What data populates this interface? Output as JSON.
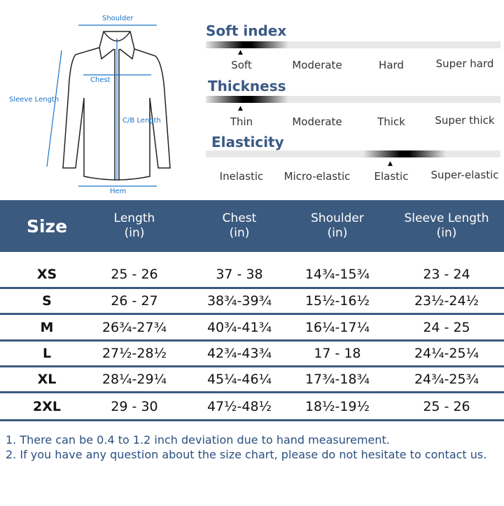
{
  "diagram": {
    "shoulder": "Shoulder",
    "chest": "Chest",
    "sleeve_length": "Sleeve Length",
    "cb_length": "C/B Length",
    "hem": "Hem"
  },
  "properties": [
    {
      "title": "Soft index",
      "options": [
        "Soft",
        "Moderate",
        "Hard",
        "Super hard"
      ],
      "selected": "Soft"
    },
    {
      "title": "Thickness",
      "options": [
        "Thin",
        "Moderate",
        "Thick",
        "Super thick"
      ],
      "selected": "Thin"
    },
    {
      "title": "Elasticity",
      "options": [
        "Inelastic",
        "Micro-elastic",
        "Elastic",
        "Super-elastic"
      ],
      "selected": "Elastic"
    }
  ],
  "table": {
    "headers": [
      {
        "l1": "Size",
        "l2": ""
      },
      {
        "l1": "Length",
        "l2": "(in)"
      },
      {
        "l1": "Chest",
        "l2": "(in)"
      },
      {
        "l1": "Shoulder",
        "l2": "(in)"
      },
      {
        "l1": "Sleeve Length",
        "l2": "(in)"
      }
    ],
    "rows": [
      [
        "XS",
        "25 - 26",
        "37 - 38",
        "14¾-15¾",
        "23 - 24"
      ],
      [
        "S",
        "26 - 27",
        "38¾-39¾",
        "15½-16½",
        "23½-24½"
      ],
      [
        "M",
        "26¾-27¾",
        "40¾-41¾",
        "16¼-17¼",
        "24 - 25"
      ],
      [
        "L",
        "27½-28½",
        "42¾-43¾",
        "17 - 18",
        "24¼-25¼"
      ],
      [
        "XL",
        "28¼-29¼",
        "45¼-46¼",
        "17¾-18¾",
        "24¾-25¾"
      ],
      [
        "2XL",
        "29 - 30",
        "47½-48½",
        "18½-19½",
        "25 - 26"
      ]
    ]
  },
  "notes": [
    "1. There can be 0.4 to 1.2 inch deviation due to hand measurement.",
    "2. If you have any question about the size chart, please do not hesitate to contact us."
  ],
  "colors": {
    "header": "#3b5a7f",
    "title": "#3a5a85",
    "diagram": "#1a73c8"
  }
}
